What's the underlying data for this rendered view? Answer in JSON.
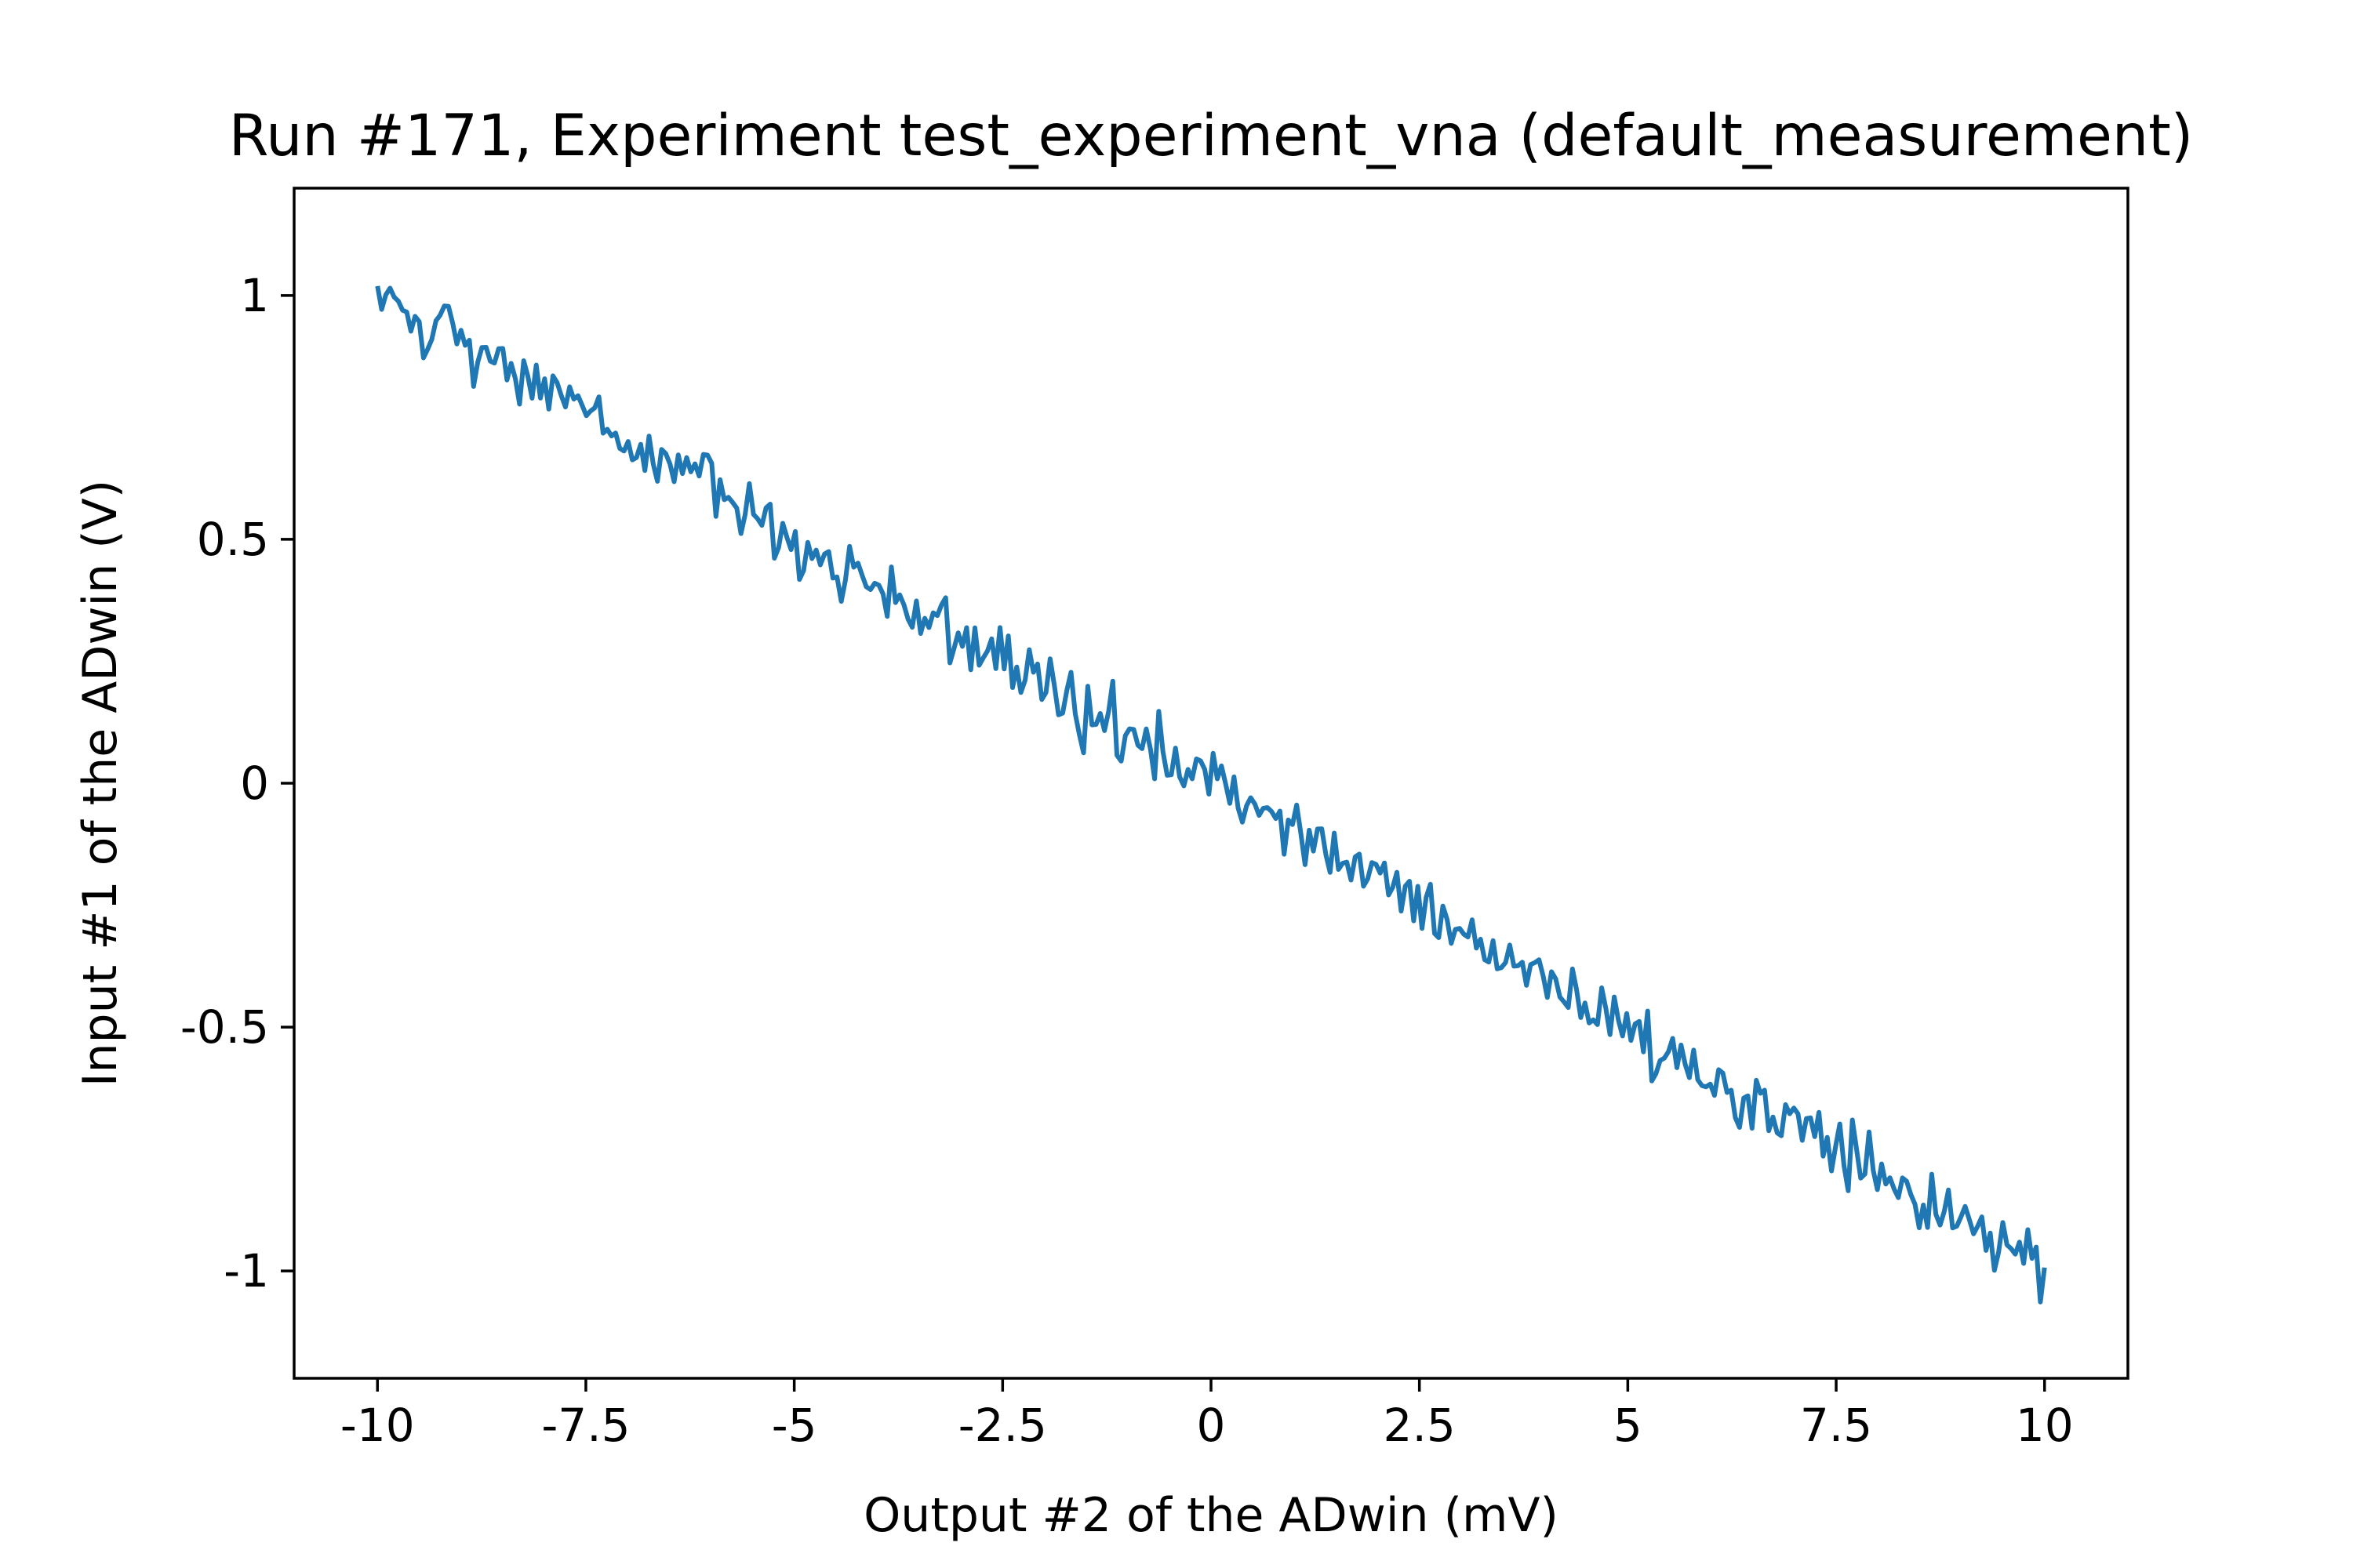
{
  "chart_data": {
    "type": "line",
    "title": "Run #171, Experiment test_experiment_vna (default_measurement)",
    "xlabel": "Output #2 of the ADwin (mV)",
    "ylabel": "Input #1 of the ADwin (V)",
    "xlim": [
      -11,
      11
    ],
    "ylim": [
      -1.22,
      1.22
    ],
    "xticks": [
      -10,
      -7.5,
      -5,
      -2.5,
      0,
      2.5,
      5,
      7.5,
      10
    ],
    "xtick_labels": [
      "-10",
      "-7.5",
      "-5",
      "-2.5",
      "0",
      "2.5",
      "5",
      "7.5",
      "10"
    ],
    "yticks": [
      -1,
      -0.5,
      0,
      0.5,
      1
    ],
    "ytick_labels": [
      "-1",
      "-0.5",
      "0",
      "0.5",
      "1"
    ],
    "grid": false,
    "series": [
      {
        "color": "#1f77b4",
        "trend": {
          "x_start": -10,
          "y_start": 1.0,
          "x_end": 10,
          "y_end": -1.0
        },
        "noise_amplitude": 0.05,
        "n_points": 400
      }
    ]
  }
}
